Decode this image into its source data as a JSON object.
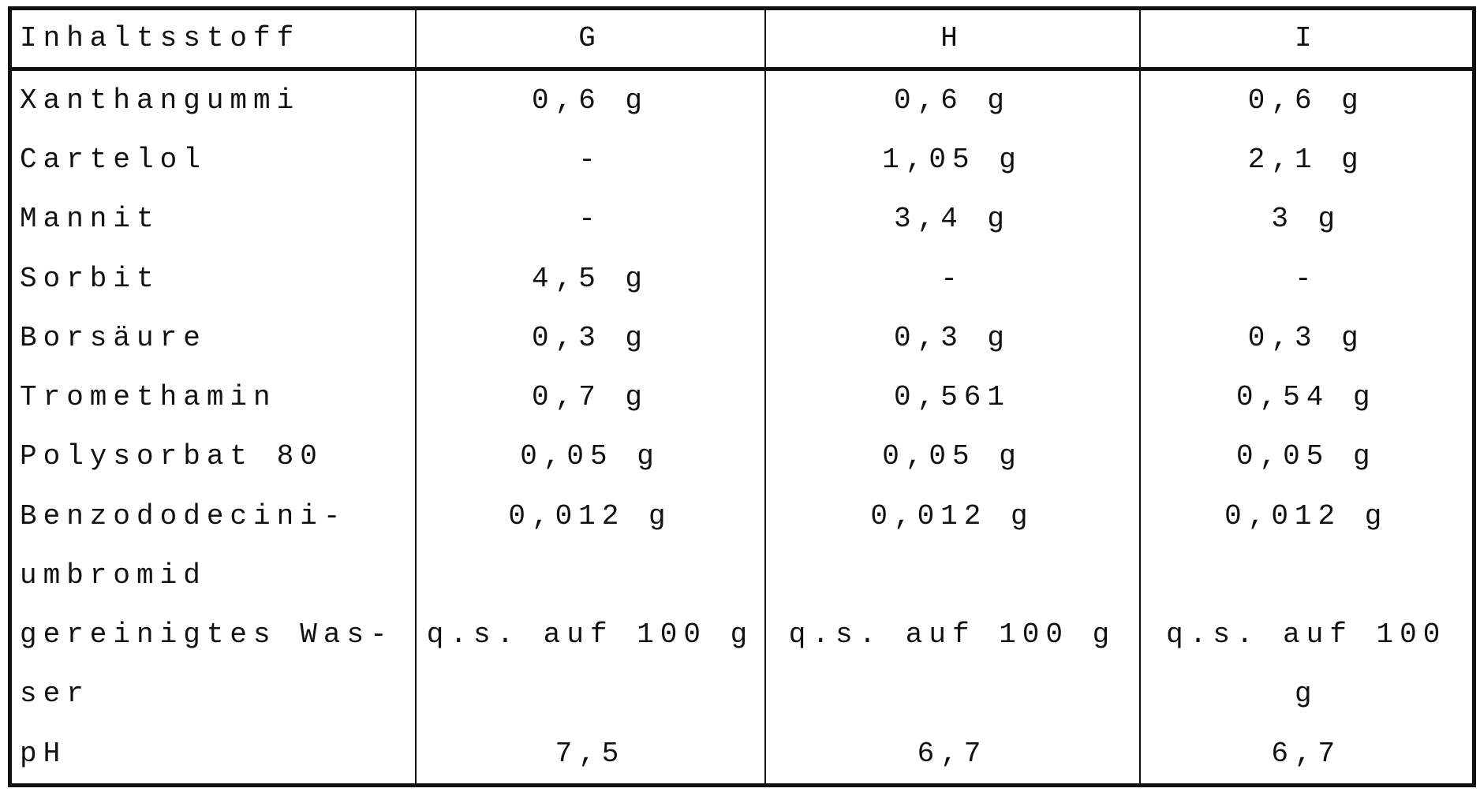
{
  "table": {
    "header": [
      "Inhaltsstoff",
      "G",
      "H",
      "I"
    ],
    "rows": [
      [
        "Xanthangummi",
        "0,6 g",
        "0,6 g",
        "0,6 g"
      ],
      [
        "Cartelol",
        "-",
        "1,05 g",
        "2,1 g"
      ],
      [
        "Mannit",
        "-",
        "3,4 g",
        "3 g"
      ],
      [
        "Sorbit",
        "4,5 g",
        "-",
        "-"
      ],
      [
        "Borsäure",
        "0,3 g",
        "0,3 g",
        "0,3 g"
      ],
      [
        "Tromethamin",
        "0,7 g",
        "0,561",
        "0,54 g"
      ],
      [
        "Polysorbat 80",
        "0,05 g",
        "0,05 g",
        "0,05 g"
      ],
      [
        "Benzododecini-\numbromid",
        "0,012 g",
        "0,012 g",
        "0,012 g"
      ],
      [
        "gereinigtes Was-\nser",
        "q.s. auf 100 g",
        "q.s. auf 100 g",
        "q.s. auf 100 g"
      ],
      [
        "pH",
        "7,5",
        "6,7",
        "6,7"
      ]
    ]
  }
}
